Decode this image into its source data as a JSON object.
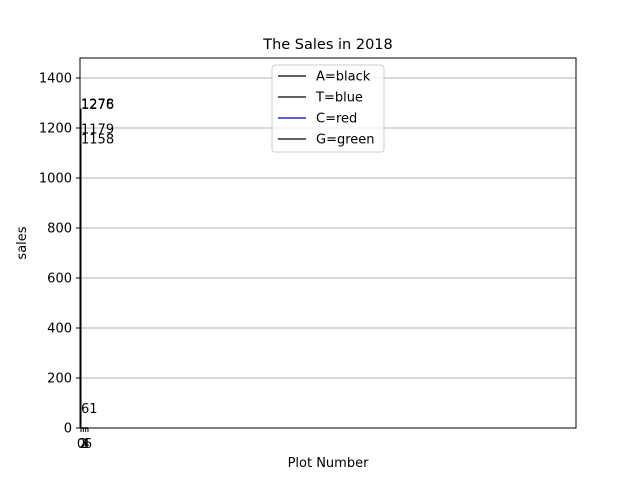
{
  "chart_data": {
    "type": "line",
    "title": "The Sales in 2018",
    "xlabel": "Plot Number",
    "ylabel": "sales",
    "ylim": [
      0,
      1480
    ],
    "yticks": [
      0,
      200,
      400,
      600,
      800,
      1000,
      1200,
      1400
    ],
    "xticks": [
      "0",
      "2",
      "4",
      "6"
    ],
    "grid": "y",
    "legend_position": "top-center",
    "series": [
      {
        "name": "A=black",
        "color": "#000000",
        "x": [
          0,
          2,
          4,
          6
        ],
        "values": [
          0,
          0,
          0,
          0
        ]
      },
      {
        "name": "T=blue",
        "color": "#000000",
        "x": [
          0,
          2,
          4,
          6
        ],
        "values": [
          0,
          0,
          0,
          0
        ]
      },
      {
        "name": "C=red",
        "color": "#0000cc",
        "x": [
          0,
          2,
          4,
          6
        ],
        "values": [
          0,
          0,
          0,
          0
        ]
      },
      {
        "name": "G=green",
        "color": "#000000",
        "x": [
          0,
          2,
          4,
          6
        ],
        "values": [
          0,
          0,
          0,
          0
        ]
      }
    ],
    "annotations": [
      {
        "text": "1278",
        "value": 1278
      },
      {
        "text": "1276",
        "value": 1276
      },
      {
        "text": "1179",
        "value": 1179
      },
      {
        "text": "1158",
        "value": 1158
      },
      {
        "text": "61",
        "value": 61
      }
    ]
  }
}
